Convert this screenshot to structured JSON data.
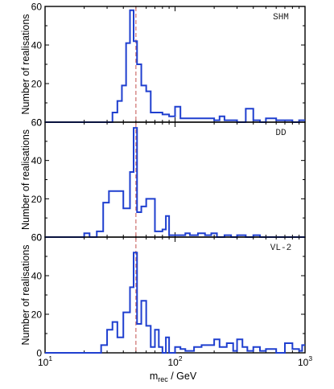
{
  "chart_data": [
    {
      "type": "histogram",
      "panel_label": "SHM",
      "ylabel": "Number of realisations",
      "ylim": [
        0,
        60
      ],
      "yticks": [
        0,
        20,
        40,
        60
      ],
      "xscale": "log",
      "xlim": [
        10,
        1000
      ],
      "bin_edges": [
        10,
        30,
        33,
        36,
        39,
        42,
        45,
        48,
        51,
        55,
        60,
        65,
        70,
        75,
        80,
        90,
        100,
        110,
        120,
        130,
        140,
        150,
        200,
        220,
        240,
        280,
        300,
        350,
        400,
        450,
        500,
        600,
        700,
        800,
        900,
        1000
      ],
      "counts": [
        0,
        0,
        5,
        11,
        19,
        41,
        58,
        42,
        30,
        19,
        16,
        5,
        5,
        5,
        4,
        3,
        8,
        2,
        2,
        2,
        2,
        2,
        1,
        3,
        1,
        1,
        0,
        7,
        1,
        0,
        2,
        1,
        1,
        0,
        1
      ]
    },
    {
      "type": "histogram",
      "panel_label": "DD",
      "ylabel": "Number of realisations",
      "ylim": [
        0,
        60
      ],
      "yticks": [
        0,
        20,
        40,
        60
      ],
      "xscale": "log",
      "xlim": [
        10,
        1000
      ],
      "bin_edges": [
        10,
        20,
        22,
        25,
        28,
        31,
        35,
        40,
        45,
        48,
        51,
        55,
        60,
        65,
        70,
        75,
        80,
        85,
        90,
        100,
        110,
        120,
        130,
        150,
        170,
        190,
        210,
        240,
        270,
        300,
        350,
        400,
        450,
        500,
        1000
      ],
      "counts": [
        0,
        2,
        0,
        3,
        18,
        24,
        24,
        15,
        34,
        57,
        13,
        16,
        20,
        20,
        3,
        3,
        4,
        11,
        1,
        1,
        1,
        2,
        1,
        2,
        1,
        2,
        0,
        1,
        0,
        1,
        0,
        1,
        0,
        0
      ]
    },
    {
      "type": "histogram",
      "panel_label": "VL-2",
      "ylabel": "Number of realisations",
      "ylim": [
        0,
        60
      ],
      "yticks": [
        0,
        20,
        40,
        60
      ],
      "xscale": "log",
      "xlim": [
        10,
        1000
      ],
      "bin_edges": [
        10,
        27,
        30,
        33,
        36,
        40,
        45,
        48,
        51,
        55,
        60,
        65,
        70,
        75,
        80,
        85,
        90,
        100,
        110,
        120,
        140,
        160,
        180,
        200,
        220,
        250,
        280,
        300,
        330,
        360,
        400,
        450,
        500,
        600,
        700,
        800,
        900,
        950,
        1000
      ],
      "counts": [
        0,
        4,
        12,
        16,
        8,
        21,
        34,
        52,
        15,
        27,
        14,
        3,
        12,
        3,
        0,
        8,
        0,
        3,
        2,
        1,
        3,
        4,
        4,
        7,
        3,
        5,
        1,
        7,
        3,
        1,
        3,
        1,
        2,
        0,
        5,
        2,
        1,
        4
      ]
    }
  ],
  "x_axis": {
    "label_main": "m",
    "label_sub": "rec",
    "label_unit": " / GeV",
    "ticks": [
      {
        "value": 10,
        "base": "10",
        "exp": "1"
      },
      {
        "value": 100,
        "base": "10",
        "exp": "2"
      },
      {
        "value": 1000,
        "base": "10",
        "exp": "3"
      }
    ]
  },
  "reference_line": {
    "x": 50
  },
  "colors": {
    "histogram": "#1f3fcf",
    "reference_line": "#c2524f",
    "frame": "#000000"
  }
}
